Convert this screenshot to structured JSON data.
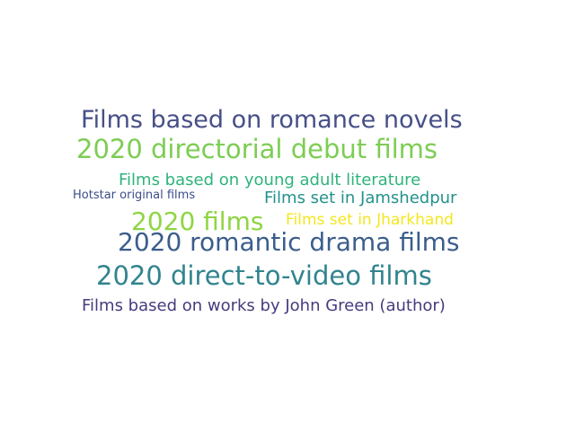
{
  "words": [
    {
      "text": "Films based on romance novels",
      "color": "#464f87"
    },
    {
      "text": "2020 directorial debut films",
      "color": "#7dcd54"
    },
    {
      "text": "Films based on young adult literature",
      "color": "#2eb37c"
    },
    {
      "text": "Hotstar original films",
      "color": "#3c4d8a"
    },
    {
      "text": "Films set in Jamshedpur",
      "color": "#23918c"
    },
    {
      "text": "2020 films",
      "color": "#8ed543"
    },
    {
      "text": "Films set in Jharkhand",
      "color": "#f4e61e"
    },
    {
      "text": "2020 romantic drama films",
      "color": "#3a5d8c"
    },
    {
      "text": "2020 direct-to-video films",
      "color": "#31848e"
    },
    {
      "text": "Films based on works by John Green (author)",
      "color": "#463b7d"
    }
  ]
}
